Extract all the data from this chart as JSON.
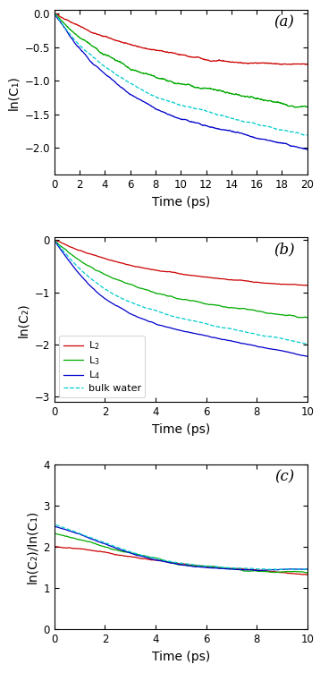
{
  "panel_a": {
    "label": "(a)",
    "ylabel": "ln(C₁)",
    "xlim": [
      0,
      20
    ],
    "ylim": [
      -2.4,
      0.05
    ],
    "yticks": [
      0,
      -0.5,
      -1.0,
      -1.5,
      -2.0
    ],
    "xticks": [
      0,
      2,
      4,
      6,
      8,
      10,
      12,
      14,
      16,
      18,
      20
    ],
    "xlabel": "Time (ps)",
    "curves": {
      "L2": {
        "A1": 0.5,
        "tau1": 5.0,
        "A2": 0.5,
        "tau2": 200.0,
        "noise": 0.012
      },
      "L3": {
        "A1": 0.6,
        "tau1": 3.5,
        "A2": 0.4,
        "tau2": 40.0,
        "noise": 0.018
      },
      "L4": {
        "A1": 0.7,
        "tau1": 2.5,
        "A2": 0.3,
        "tau2": 25.0,
        "noise": 0.012
      },
      "bulk": {
        "A1": 0.65,
        "tau1": 2.8,
        "A2": 0.35,
        "tau2": 28.0,
        "noise": 0.01
      }
    }
  },
  "panel_b": {
    "label": "(b)",
    "ylabel": "ln(C₂)",
    "xlim": [
      0,
      10
    ],
    "ylim": [
      -3.1,
      0.05
    ],
    "yticks": [
      0,
      -1.0,
      -2.0,
      -3.0
    ],
    "xticks": [
      0,
      2,
      4,
      6,
      8,
      10
    ],
    "xlabel": "Time (ps)",
    "curves": {
      "L2": {
        "A1": 0.5,
        "tau1": 2.5,
        "A2": 0.5,
        "tau2": 80.0,
        "noise": 0.012
      },
      "L3": {
        "A1": 0.6,
        "tau1": 1.5,
        "A2": 0.4,
        "tau2": 18.0,
        "noise": 0.018
      },
      "L4": {
        "A1": 0.7,
        "tau1": 1.0,
        "A2": 0.3,
        "tau2": 10.0,
        "noise": 0.012
      },
      "bulk": {
        "A1": 0.65,
        "tau1": 1.1,
        "A2": 0.35,
        "tau2": 11.0,
        "noise": 0.01
      }
    }
  },
  "panel_c": {
    "label": "(c)",
    "ylabel": "ln(C₂)/ln(C₁)",
    "xlim": [
      0,
      10
    ],
    "ylim": [
      0,
      4
    ],
    "yticks": [
      0,
      1,
      2,
      3,
      4
    ],
    "xticks": [
      0,
      2,
      4,
      6,
      8,
      10
    ],
    "xlabel": "Time (ps)"
  },
  "colors": {
    "L2": "#cc0000",
    "L3": "#00aa00",
    "L4": "#0000cc",
    "bulk": "#00cccc"
  },
  "legend": {
    "L2": "L$_2$",
    "L3": "L$_3$",
    "L4": "L$_4$",
    "bulk": "bulk water"
  },
  "linewidth": 0.9
}
